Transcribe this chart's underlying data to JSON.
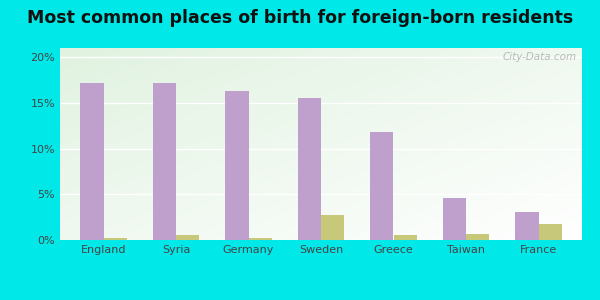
{
  "title": "Most common places of birth for foreign-born residents",
  "categories": [
    "England",
    "Syria",
    "Germany",
    "Sweden",
    "Greece",
    "Taiwan",
    "France"
  ],
  "zip_values": [
    17.2,
    17.2,
    16.3,
    15.5,
    11.8,
    4.6,
    3.1
  ],
  "nc_values": [
    0.2,
    0.5,
    0.2,
    2.7,
    0.6,
    0.7,
    1.8
  ],
  "zip_color": "#bf9fcc",
  "nc_color": "#c8c87a",
  "background_outer": "#00e8e8",
  "ylim": [
    0,
    21
  ],
  "yticks": [
    0,
    5,
    10,
    15,
    20
  ],
  "ytick_labels": [
    "0%",
    "5%",
    "10%",
    "15%",
    "20%"
  ],
  "bar_width": 0.32,
  "title_fontsize": 12.5,
  "tick_fontsize": 8,
  "legend_fontsize": 8.5,
  "watermark": "City-Data.com"
}
